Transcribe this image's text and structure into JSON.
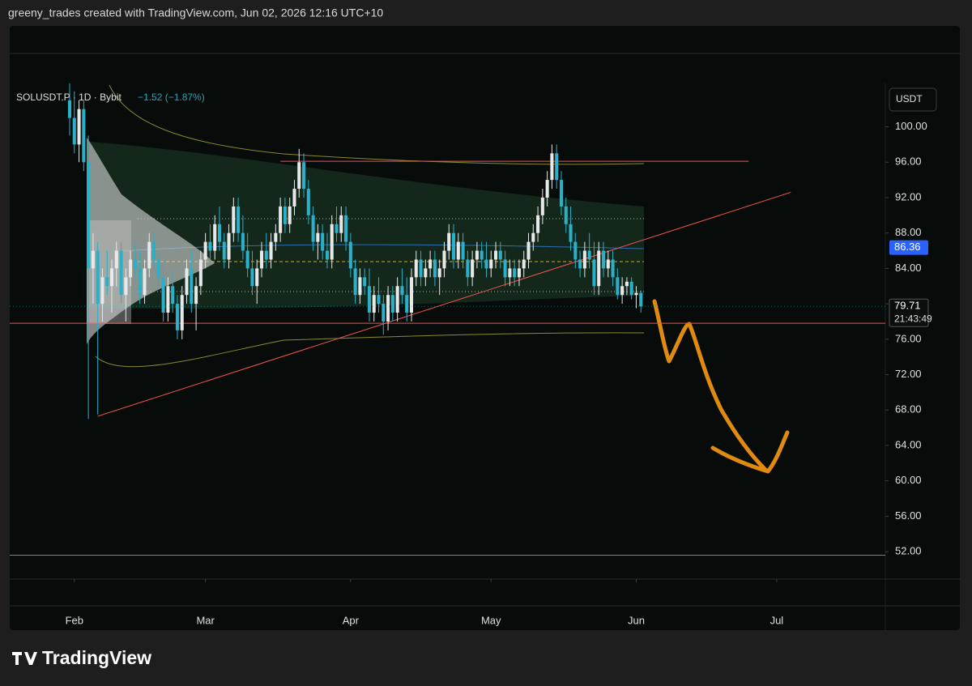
{
  "header": "greeny_trades created with TradingView.com, Jun 02, 2026 12:16 UTC+10",
  "chart_data": {
    "type": "candlestick",
    "title": "SOLUSDT.P · 1D · Bybit",
    "change": "−1.52 (−1.87%)",
    "currency": "USDT",
    "up_color": "#e8e8e8",
    "down_color": "#2ab0c8",
    "candles": [
      [
        103,
        105,
        99,
        101
      ],
      [
        101,
        104,
        97,
        98
      ],
      [
        98,
        103,
        96,
        102
      ],
      [
        102,
        103,
        95,
        96
      ],
      [
        96,
        99,
        67,
        84
      ],
      [
        84,
        88,
        80,
        86
      ],
      [
        86,
        87,
        67.5,
        80
      ],
      [
        80,
        84,
        78,
        83
      ],
      [
        83,
        86,
        81,
        82
      ],
      [
        82,
        85,
        79,
        84
      ],
      [
        84,
        87,
        82,
        86
      ],
      [
        86,
        87,
        80,
        81
      ],
      [
        81,
        84,
        78,
        83
      ],
      [
        83,
        86,
        82,
        85
      ],
      [
        85,
        87,
        83,
        84
      ],
      [
        84,
        86,
        80,
        81
      ],
      [
        81,
        85,
        80,
        84
      ],
      [
        84,
        88,
        83,
        87
      ],
      [
        87,
        88,
        84,
        85
      ],
      [
        85,
        86,
        82,
        83
      ],
      [
        83,
        84,
        78,
        79
      ],
      [
        79,
        83,
        78,
        82
      ],
      [
        82,
        84,
        79,
        80
      ],
      [
        80,
        81,
        76,
        77
      ],
      [
        77,
        82,
        76,
        81
      ],
      [
        81,
        85,
        80,
        84
      ],
      [
        84,
        86,
        79,
        80
      ],
      [
        80,
        83,
        77,
        82
      ],
      [
        82,
        86,
        81,
        85
      ],
      [
        85,
        88,
        84,
        87
      ],
      [
        87,
        89,
        85,
        86
      ],
      [
        86,
        90,
        85,
        89
      ],
      [
        89,
        91,
        86,
        87
      ],
      [
        87,
        88,
        84,
        85
      ],
      [
        85,
        89,
        84,
        88
      ],
      [
        88,
        92,
        87,
        91
      ],
      [
        91,
        92,
        87,
        88
      ],
      [
        88,
        90,
        85,
        86
      ],
      [
        86,
        88,
        83,
        84
      ],
      [
        84,
        86,
        81,
        82
      ],
      [
        82,
        85,
        80,
        84
      ],
      [
        84,
        87,
        83,
        86
      ],
      [
        86,
        88,
        84,
        85
      ],
      [
        85,
        88,
        84,
        87
      ],
      [
        87,
        89,
        86,
        88
      ],
      [
        88,
        92,
        87,
        91
      ],
      [
        91,
        92,
        88,
        89
      ],
      [
        89,
        92,
        88,
        91
      ],
      [
        91,
        94,
        90,
        93
      ],
      [
        93,
        97.5,
        92,
        96
      ],
      [
        96,
        97,
        92,
        93
      ],
      [
        93,
        94,
        89,
        90
      ],
      [
        90,
        91,
        86,
        87
      ],
      [
        87,
        89,
        85,
        88
      ],
      [
        88,
        89,
        85,
        86
      ],
      [
        86,
        88,
        84,
        85
      ],
      [
        85,
        90,
        84,
        89
      ],
      [
        89,
        91,
        87,
        88
      ],
      [
        88,
        91,
        87,
        90
      ],
      [
        90,
        91,
        86,
        87
      ],
      [
        87,
        88,
        83,
        84
      ],
      [
        84,
        85,
        80,
        81
      ],
      [
        81,
        84,
        80,
        83
      ],
      [
        83,
        84,
        81,
        82
      ],
      [
        82,
        84,
        78,
        79
      ],
      [
        79,
        82,
        78,
        81
      ],
      [
        81,
        83,
        79,
        80
      ],
      [
        80,
        81,
        76.5,
        78
      ],
      [
        78,
        82,
        77,
        81
      ],
      [
        81,
        82,
        78,
        79
      ],
      [
        79,
        83,
        78,
        82
      ],
      [
        82,
        84,
        80,
        81
      ],
      [
        81,
        83,
        78,
        79
      ],
      [
        79,
        84,
        78,
        83
      ],
      [
        83,
        86,
        82,
        85
      ],
      [
        85,
        86,
        82,
        83
      ],
      [
        83,
        85,
        82,
        84
      ],
      [
        84,
        86,
        83,
        85
      ],
      [
        85,
        86,
        82,
        83
      ],
      [
        83,
        85,
        81,
        84
      ],
      [
        84,
        87,
        83,
        86
      ],
      [
        86,
        89,
        85,
        88
      ],
      [
        88,
        89,
        84,
        85
      ],
      [
        85,
        88,
        84,
        87
      ],
      [
        87,
        88,
        84,
        85
      ],
      [
        85,
        86,
        82,
        83
      ],
      [
        83,
        86,
        82,
        85
      ],
      [
        85,
        87,
        84,
        86
      ],
      [
        86,
        87,
        84,
        85
      ],
      [
        85,
        87,
        83,
        84
      ],
      [
        84,
        86,
        83,
        85
      ],
      [
        85,
        87,
        84,
        86
      ],
      [
        86,
        87,
        84,
        85
      ],
      [
        85,
        86,
        82,
        83
      ],
      [
        83,
        85,
        82,
        84
      ],
      [
        84,
        85,
        82,
        83
      ],
      [
        83,
        85,
        82,
        84
      ],
      [
        84,
        86,
        83,
        85
      ],
      [
        85,
        88,
        84,
        87
      ],
      [
        87,
        89,
        86,
        88
      ],
      [
        88,
        91,
        87,
        90
      ],
      [
        90,
        93,
        89,
        92
      ],
      [
        92,
        95,
        91,
        94
      ],
      [
        94,
        98,
        93,
        97
      ],
      [
        97,
        98,
        93,
        94
      ],
      [
        94,
        95,
        90,
        91
      ],
      [
        91,
        92,
        88,
        89
      ],
      [
        89,
        91,
        86,
        87
      ],
      [
        87,
        88,
        84,
        85
      ],
      [
        85,
        86,
        83,
        84
      ],
      [
        84,
        87,
        83,
        86
      ],
      [
        86,
        88,
        84,
        85
      ],
      [
        85,
        87,
        81,
        82
      ],
      [
        82,
        87,
        81,
        86
      ],
      [
        86,
        87,
        83,
        84
      ],
      [
        84,
        86,
        83,
        85
      ],
      [
        85,
        86,
        82,
        83
      ],
      [
        83,
        84,
        80.5,
        81
      ],
      [
        81,
        83,
        80,
        82
      ],
      [
        82,
        83,
        81,
        82.5
      ],
      [
        82.5,
        83,
        80.5,
        81
      ],
      [
        81,
        82,
        79.5,
        81.23
      ],
      [
        81.23,
        81.5,
        79,
        79.71
      ]
    ],
    "xlim": [
      -12.8,
      174.2
    ],
    "xticks": [
      {
        "value": 1,
        "label": "Feb"
      },
      {
        "value": 29,
        "label": "Mar"
      },
      {
        "value": 60,
        "label": "Apr"
      },
      {
        "value": 90,
        "label": "May"
      },
      {
        "value": 121,
        "label": "Jun"
      },
      {
        "value": 151,
        "label": "Jul"
      }
    ],
    "ylim": [
      48.9,
      104.9
    ],
    "yticks": [
      {
        "value": 52,
        "label": "52.00"
      },
      {
        "value": 56,
        "label": "56.00"
      },
      {
        "value": 60,
        "label": "60.00"
      },
      {
        "value": 64,
        "label": "64.00"
      },
      {
        "value": 68,
        "label": "68.00"
      },
      {
        "value": 72,
        "label": "72.00"
      },
      {
        "value": 76,
        "label": "76.00"
      },
      {
        "value": 80,
        "label": "80.00"
      },
      {
        "value": 84,
        "label": "84.00"
      },
      {
        "value": 88,
        "label": "88.00"
      },
      {
        "value": 92,
        "label": "92.00"
      },
      {
        "value": 96,
        "label": "96.00"
      },
      {
        "value": 100,
        "label": "100.00"
      }
    ],
    "levels": [
      {
        "y": 96.1,
        "x": [
          45,
          145
        ]
      },
      {
        "y": 77.8
      },
      {
        "y": 51.6
      }
    ],
    "level_color": "#f05350",
    "trendline": {
      "x": [
        6,
        154
      ],
      "y": [
        67.3,
        92.6
      ]
    },
    "last_price": 79.71,
    "countdown": "21:43:49",
    "marker_price": 86.36,
    "marker_color": "#2962ff"
  },
  "brand": "TradingView"
}
